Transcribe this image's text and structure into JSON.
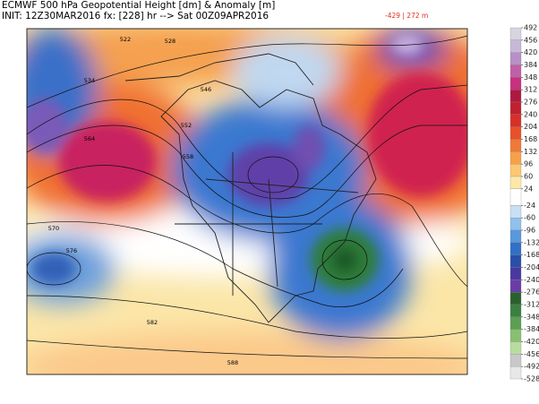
{
  "header": {
    "title": "ECMWF 500 hPa Geopotential Height [dm] & Anomaly [m]",
    "init": "INIT: 12Z30MAR2016 fx: [228] hr --> Sat 00Z09APR2016",
    "extremes": "-429 | 272 m"
  },
  "contour_labels": [
    522,
    528,
    534,
    546,
    552,
    558,
    564,
    570,
    576,
    582,
    588
  ],
  "colorbar": {
    "ticks": [
      492,
      456,
      420,
      384,
      348,
      312,
      276,
      240,
      204,
      168,
      132,
      96,
      60,
      24,
      -24,
      -60,
      -96,
      -132,
      -168,
      -204,
      -240,
      -276,
      -312,
      -348,
      -384,
      -420,
      -456,
      -492,
      -528
    ],
    "colors": [
      "#d8d4e0",
      "#c8b8d8",
      "#b890c8",
      "#c060a8",
      "#c83080",
      "#b01840",
      "#c02030",
      "#d83028",
      "#e85028",
      "#f07838",
      "#f8a048",
      "#fcc870",
      "#fde8a8",
      "#ffffff",
      "#c8e0f4",
      "#90c0ec",
      "#5898dc",
      "#3070c8",
      "#2850a8",
      "#4838a0",
      "#6a3ca8",
      "#2a6030",
      "#3a8040",
      "#5aa050",
      "#88c070",
      "#b8dca0",
      "#c8c8c8",
      "#e8e8e8"
    ]
  }
}
